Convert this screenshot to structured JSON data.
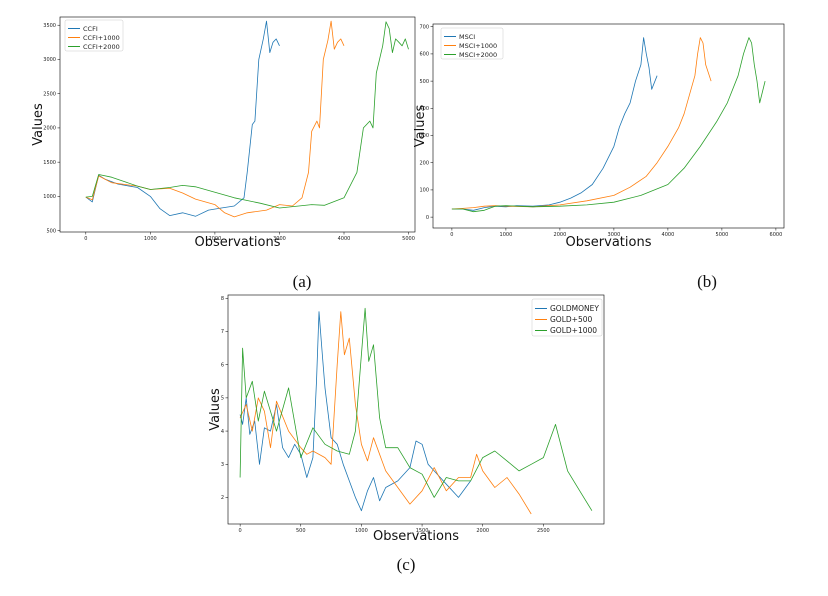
{
  "panels": [
    {
      "caption": "(a)"
    },
    {
      "caption": "(b)"
    },
    {
      "caption": "(c)"
    }
  ],
  "colors": {
    "blue": "#1f77b4",
    "orange": "#ff7f0e",
    "green": "#2ca02c"
  },
  "chart_data": [
    {
      "type": "line",
      "panel": "(a)",
      "xlabel": "Observations",
      "ylabel": "Values",
      "xlim": [
        -400,
        5100
      ],
      "ylim": [
        480,
        3620
      ],
      "xticks": [
        0,
        1000,
        2000,
        3000,
        4000,
        5000
      ],
      "yticks": [
        500,
        1000,
        1500,
        2000,
        2500,
        3000,
        3500
      ],
      "legend_position": "top-left",
      "series": [
        {
          "name": "CCFI",
          "color": "#1f77b4",
          "x": [
            0,
            100,
            200,
            300,
            500,
            800,
            1000,
            1150,
            1300,
            1500,
            1700,
            1900,
            2100,
            2300,
            2450,
            2500,
            2580,
            2620,
            2680,
            2750,
            2800,
            2850,
            2900,
            2950,
            3000
          ],
          "y": [
            990,
            920,
            1310,
            1250,
            1180,
            1130,
            1000,
            820,
            720,
            760,
            710,
            800,
            830,
            860,
            980,
            1350,
            2050,
            2100,
            3000,
            3300,
            3560,
            3100,
            3250,
            3300,
            3200
          ]
        },
        {
          "name": "CCFI+1000",
          "color": "#ff7f0e",
          "x": [
            0,
            100,
            200,
            400,
            800,
            1000,
            1300,
            1500,
            1700,
            2000,
            2150,
            2300,
            2500,
            2800,
            3000,
            3200,
            3350,
            3450,
            3500,
            3580,
            3620,
            3680,
            3750,
            3800,
            3850,
            3900,
            3950,
            4000
          ],
          "y": [
            990,
            950,
            1300,
            1200,
            1150,
            1100,
            1120,
            1050,
            960,
            880,
            760,
            700,
            760,
            800,
            880,
            860,
            980,
            1350,
            1950,
            2100,
            2000,
            3000,
            3280,
            3560,
            3150,
            3250,
            3300,
            3200
          ]
        },
        {
          "name": "CCFI+2000",
          "color": "#2ca02c",
          "x": [
            0,
            100,
            200,
            400,
            800,
            1000,
            1300,
            1500,
            1700,
            2000,
            2300,
            2500,
            2700,
            3000,
            3300,
            3500,
            3700,
            4000,
            4200,
            4300,
            4400,
            4450,
            4500,
            4550,
            4600,
            4650,
            4700,
            4750,
            4800,
            4850,
            4900,
            4950,
            5000
          ],
          "y": [
            990,
            1000,
            1320,
            1280,
            1150,
            1100,
            1130,
            1160,
            1140,
            1060,
            980,
            940,
            900,
            830,
            860,
            880,
            870,
            980,
            1350,
            2000,
            2100,
            2000,
            2800,
            3000,
            3200,
            3550,
            3450,
            3100,
            3300,
            3250,
            3200,
            3300,
            3150
          ]
        }
      ]
    },
    {
      "type": "line",
      "panel": "(b)",
      "xlabel": "Observations",
      "ylabel": "Values",
      "xlim": [
        -350,
        6150
      ],
      "ylim": [
        -40,
        710
      ],
      "xticks": [
        0,
        1000,
        2000,
        3000,
        4000,
        5000,
        6000
      ],
      "yticks": [
        0,
        100,
        200,
        300,
        400,
        500,
        600,
        700
      ],
      "legend_position": "top-left",
      "series": [
        {
          "name": "MSCI",
          "color": "#1f77b4",
          "x": [
            0,
            200,
            400,
            600,
            800,
            1000,
            1200,
            1500,
            1800,
            2000,
            2200,
            2400,
            2600,
            2800,
            3000,
            3100,
            3200,
            3300,
            3400,
            3500,
            3550,
            3600,
            3650,
            3700,
            3800
          ],
          "y": [
            30,
            30,
            25,
            35,
            40,
            38,
            42,
            40,
            45,
            55,
            70,
            90,
            120,
            180,
            260,
            330,
            380,
            420,
            500,
            560,
            660,
            600,
            550,
            470,
            520
          ]
        },
        {
          "name": "MSCI+1000",
          "color": "#ff7f0e",
          "x": [
            0,
            200,
            400,
            600,
            800,
            1000,
            1500,
            2000,
            2500,
            3000,
            3300,
            3600,
            3800,
            4000,
            4200,
            4300,
            4400,
            4500,
            4550,
            4600,
            4650,
            4700,
            4800
          ],
          "y": [
            30,
            32,
            35,
            40,
            42,
            40,
            38,
            45,
            60,
            80,
            110,
            150,
            200,
            260,
            330,
            380,
            450,
            520,
            600,
            660,
            640,
            560,
            500
          ]
        },
        {
          "name": "MSCI+2000",
          "color": "#2ca02c",
          "x": [
            0,
            200,
            400,
            600,
            800,
            1000,
            1500,
            2000,
            2500,
            3000,
            3500,
            4000,
            4300,
            4600,
            4900,
            5100,
            5300,
            5400,
            5500,
            5550,
            5600,
            5650,
            5700,
            5750,
            5800
          ],
          "y": [
            30,
            30,
            20,
            25,
            40,
            42,
            38,
            40,
            45,
            55,
            80,
            120,
            180,
            260,
            350,
            420,
            520,
            600,
            660,
            640,
            560,
            500,
            420,
            460,
            500
          ]
        }
      ]
    },
    {
      "type": "line",
      "panel": "(c)",
      "xlabel": "Observations",
      "ylabel": "Values",
      "xlim": [
        -100,
        3000
      ],
      "ylim": [
        1.2,
        8.1
      ],
      "xticks": [
        0,
        500,
        1000,
        1500,
        2000,
        2500
      ],
      "yticks": [
        2,
        3,
        4,
        5,
        6,
        7,
        8
      ],
      "legend_position": "top-right",
      "series": [
        {
          "name": "GOLDMONEY",
          "color": "#1f77b4",
          "x": [
            0,
            20,
            50,
            80,
            120,
            160,
            200,
            250,
            300,
            350,
            400,
            450,
            500,
            550,
            600,
            630,
            650,
            680,
            700,
            750,
            800,
            850,
            900,
            950,
            1000,
            1050,
            1100,
            1150,
            1200,
            1300,
            1400,
            1450,
            1500,
            1550,
            1600,
            1700,
            1800,
            1900
          ],
          "y": [
            4.5,
            4.2,
            5.0,
            3.9,
            4.3,
            3.0,
            4.1,
            4.0,
            4.8,
            3.5,
            3.2,
            3.6,
            3.3,
            2.6,
            3.2,
            5.5,
            7.6,
            6.2,
            5.3,
            3.8,
            3.6,
            3.0,
            2.5,
            2.0,
            1.6,
            2.2,
            2.6,
            1.9,
            2.3,
            2.5,
            2.9,
            3.7,
            3.6,
            3.0,
            2.8,
            2.4,
            2.0,
            2.5
          ]
        },
        {
          "name": "GOLD+500",
          "color": "#ff7f0e",
          "x": [
            0,
            50,
            100,
            150,
            200,
            250,
            300,
            400,
            500,
            550,
            600,
            700,
            750,
            800,
            830,
            860,
            900,
            950,
            1000,
            1050,
            1100,
            1200,
            1300,
            1400,
            1500,
            1600,
            1700,
            1800,
            1900,
            1950,
            2000,
            2100,
            2200,
            2300,
            2400
          ],
          "y": [
            4.4,
            4.8,
            4.0,
            5.0,
            4.6,
            3.5,
            4.9,
            4.0,
            3.5,
            3.3,
            3.4,
            3.2,
            3.0,
            6.0,
            7.6,
            6.3,
            6.8,
            4.8,
            3.6,
            3.1,
            3.8,
            2.8,
            2.3,
            1.8,
            2.2,
            2.9,
            2.2,
            2.6,
            2.6,
            3.3,
            2.8,
            2.3,
            2.6,
            2.1,
            1.5
          ]
        },
        {
          "name": "GOLD+1000",
          "color": "#2ca02c",
          "x": [
            0,
            20,
            50,
            100,
            150,
            200,
            300,
            400,
            500,
            600,
            700,
            800,
            900,
            950,
            1000,
            1030,
            1060,
            1100,
            1150,
            1200,
            1300,
            1400,
            1500,
            1600,
            1700,
            1800,
            1900,
            2000,
            2100,
            2200,
            2300,
            2400,
            2500,
            2600,
            2700,
            2800,
            2900
          ],
          "y": [
            2.6,
            6.5,
            5.0,
            5.5,
            4.3,
            5.2,
            4.0,
            5.3,
            3.2,
            4.1,
            3.6,
            3.4,
            3.3,
            4.0,
            6.3,
            7.7,
            6.1,
            6.6,
            4.4,
            3.5,
            3.5,
            2.9,
            2.7,
            2.0,
            2.6,
            2.5,
            2.5,
            3.2,
            3.4,
            3.1,
            2.8,
            3.0,
            3.2,
            4.2,
            2.8,
            2.2,
            1.6
          ]
        }
      ]
    }
  ]
}
